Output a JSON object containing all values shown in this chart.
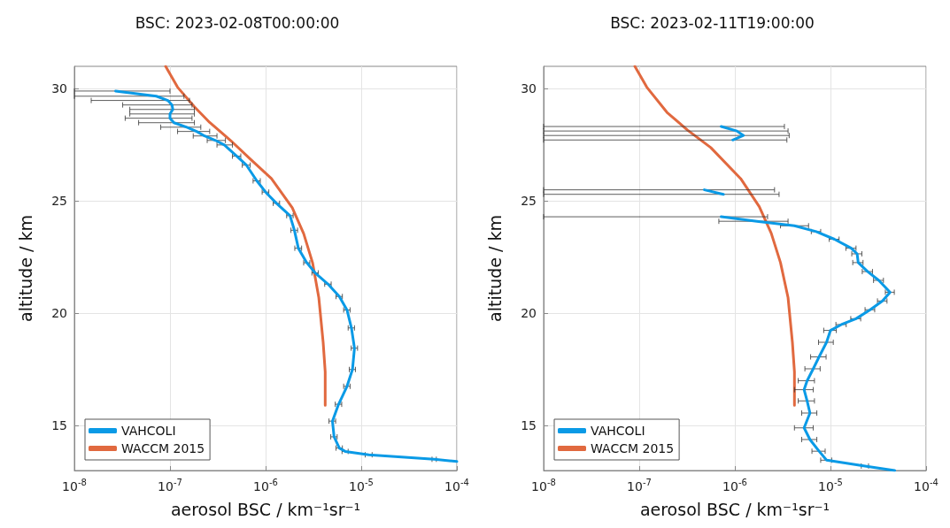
{
  "chart_data": [
    {
      "type": "line",
      "title": "BSC: 2023-02-08T00:00:00",
      "xlabel": "aerosol BSC / km⁻¹sr⁻¹",
      "ylabel": "altitude / km",
      "log": "x",
      "grid": true,
      "legend": "bottom left",
      "marker": "none",
      "xlim": [
        1e-08,
        0.0001
      ],
      "ylim": [
        13,
        31
      ],
      "xticks": [
        {
          "value": 1e-08,
          "label": "10$^{-8}$"
        },
        {
          "value": 1e-07,
          "label": "10$^{-7}$"
        },
        {
          "value": 1e-06,
          "label": "10$^{-6}$"
        },
        {
          "value": 1e-05,
          "label": "10$^{-5}$"
        },
        {
          "value": 0.0001,
          "label": "10$^{-4}$"
        }
      ],
      "yticks": [
        15,
        20,
        25,
        30
      ],
      "series": [
        {
          "name": "VAHCOLI",
          "color": "#0a9ae6",
          "x": [
            2.7e-08,
            7.2e-08,
            9.5e-08,
            1.05e-07,
            1.07e-07,
            1e-07,
            1e-07,
            1.1e-07,
            1.5e-07,
            1.9e-07,
            2.3e-07,
            3e-07,
            3.7e-07,
            5e-07,
            6.3e-07,
            8.1e-07,
            1e-06,
            1.3e-06,
            1.8e-06,
            2e-06,
            2.2e-06,
            2.7e-06,
            3.3e-06,
            4.5e-06,
            5.9e-06,
            7.1e-06,
            7.9e-06,
            8.5e-06,
            8.1e-06,
            7.1e-06,
            5.8e-06,
            5e-06,
            5.2e-06,
            5.9e-06,
            6.8e-06,
            1.2e-05,
            5.8e-05,
            0.0001
          ],
          "values": [
            29.9,
            29.67,
            29.48,
            29.28,
            29.08,
            28.88,
            28.69,
            28.49,
            28.29,
            28.1,
            27.9,
            27.7,
            27.5,
            27.0,
            26.6,
            25.9,
            25.4,
            24.9,
            24.35,
            23.7,
            22.9,
            22.25,
            21.8,
            21.3,
            20.75,
            20.15,
            19.35,
            18.45,
            17.5,
            16.75,
            15.95,
            15.2,
            14.5,
            14.0,
            13.85,
            13.7,
            13.5,
            13.4
          ],
          "xerrors": [
            [
              1e-08,
              1e-07
            ],
            [
              1e-08,
              1.4e-07
            ],
            [
              1.5e-08,
              1.6e-07
            ],
            [
              3.2e-08,
              1.7e-07
            ],
            [
              3.8e-08,
              1.8e-07
            ],
            [
              3.8e-08,
              1.8e-07
            ],
            [
              3.4e-08,
              1.7e-07
            ],
            [
              4.7e-08,
              1.8e-07
            ],
            [
              8e-08,
              2.1e-07
            ],
            [
              1.2e-07,
              2.6e-07
            ],
            [
              1.75e-07,
              3.1e-07
            ],
            [
              2.45e-07,
              3.8e-07
            ],
            [
              3.1e-07,
              4.5e-07
            ],
            5e-08,
            6e-08,
            7e-08,
            8e-08,
            1e-07,
            1.4e-07,
            1.6e-07,
            1.8e-07,
            2e-07,
            2.5e-07,
            3.5e-07,
            4.5e-07,
            5.5e-07,
            6e-07,
            6.5e-07,
            6e-07,
            5.5e-07,
            4.5e-07,
            4e-07,
            4e-07,
            4.5e-07,
            5e-07,
            1e-06,
            3e-06,
            null
          ]
        },
        {
          "name": "WACCM 2015",
          "color": "#e1693f",
          "x": [
            9e-08,
            1.2e-07,
            1.8e-07,
            2.6e-07,
            4.3e-07,
            7e-07,
            1.15e-06,
            1.9e-06,
            2.5e-06,
            3.1e-06,
            3.6e-06,
            4e-06,
            4.2e-06,
            4.2e-06
          ],
          "values": [
            31,
            30.07,
            29.2,
            28.5,
            27.7,
            26.85,
            26.0,
            24.7,
            23.55,
            22.25,
            20.7,
            18.7,
            17.4,
            15.9
          ]
        }
      ]
    },
    {
      "type": "line",
      "title": "BSC: 2023-02-11T19:00:00",
      "xlabel": "aerosol BSC / km⁻¹sr⁻¹",
      "ylabel": "altitude / km",
      "log": "x",
      "grid": true,
      "legend": "bottom left",
      "marker": "none",
      "xlim": [
        1e-08,
        0.0001
      ],
      "ylim": [
        13,
        31
      ],
      "xticks": [
        {
          "value": 1e-08,
          "label": "10$^{-8}$"
        },
        {
          "value": 1e-07,
          "label": "10$^{-7}$"
        },
        {
          "value": 1e-06,
          "label": "10$^{-6}$"
        },
        {
          "value": 1e-05,
          "label": "10$^{-5}$"
        },
        {
          "value": 0.0001,
          "label": "10$^{-4}$"
        }
      ],
      "yticks": [
        15,
        20,
        25,
        30
      ],
      "series": [
        {
          "name": "VAHCOLI",
          "color": "#0a9ae6",
          "x": [
            7.2e-07,
            1.05e-06,
            1.23e-06,
            9.5e-07,
            null,
            4.8e-07,
            7.6e-07,
            null,
            7.2e-07,
            1.7e-06,
            4.2e-06,
            7.1e-06,
            1.1e-05,
            1.65e-05,
            1.9e-05,
            1.95e-05,
            2.45e-05,
            3.2e-05,
            4.2e-05,
            3.5e-05,
            2.6e-05,
            1.85e-05,
            1.3e-05,
            1e-05,
            9.1e-06,
            7.6e-06,
            6.6e-06,
            5.7e-06,
            5.3e-06,
            5.7e-06,
            6.1e-06,
            5.3e-06,
            6.1e-06,
            7.6e-06,
            9.1e-06,
            2.3e-05,
            4.7e-05
          ],
          "values": [
            28.32,
            28.12,
            27.92,
            27.72,
            null,
            25.5,
            25.3,
            null,
            24.3,
            24.1,
            23.9,
            23.64,
            23.3,
            22.9,
            22.65,
            22.26,
            21.86,
            21.47,
            20.94,
            20.55,
            20.16,
            19.76,
            19.5,
            19.24,
            18.71,
            18.06,
            17.53,
            17.0,
            16.6,
            16.1,
            15.56,
            14.9,
            14.38,
            13.86,
            13.46,
            13.2,
            13.0
          ],
          "xerrors": [
            [
              1e-08,
              3.3e-06
            ],
            [
              1e-08,
              3.6e-06
            ],
            [
              1e-08,
              3.7e-06
            ],
            [
              1e-08,
              3.5e-06
            ],
            null,
            [
              1e-08,
              2.6e-06
            ],
            [
              1e-08,
              2.9e-06
            ],
            null,
            [
              1e-08,
              2.2e-06
            ],
            [
              6.8e-07,
              3.6e-06
            ],
            [
              3e-06,
              5.9e-06
            ],
            8e-07,
            1.3e-06,
            2e-06,
            2.3e-06,
            2.4e-06,
            3e-06,
            3.8e-06,
            4.5e-06,
            4e-06,
            3e-06,
            2.2e-06,
            1.6e-06,
            1.5e-06,
            1.6e-06,
            1.4e-06,
            1.2e-06,
            1.1e-06,
            [
              4.2e-06,
              6.6e-06
            ],
            1.1e-06,
            1.1e-06,
            [
              4.2e-06,
              6.6e-06
            ],
            1.1e-06,
            1.2e-06,
            1.2e-06,
            2e-06,
            null
          ]
        },
        {
          "name": "WACCM 2015",
          "color": "#e1693f",
          "x": [
            9e-08,
            1.2e-07,
            1.95e-07,
            3.2e-07,
            5.6e-07,
            1.15e-06,
            1.8e-06,
            2.4e-06,
            3e-06,
            3.6e-06,
            4e-06,
            4.2e-06,
            4.2e-06
          ],
          "values": [
            31,
            30.07,
            28.95,
            28.16,
            27.38,
            26.0,
            24.75,
            23.57,
            22.26,
            20.7,
            18.7,
            17.4,
            15.9
          ]
        }
      ]
    }
  ]
}
